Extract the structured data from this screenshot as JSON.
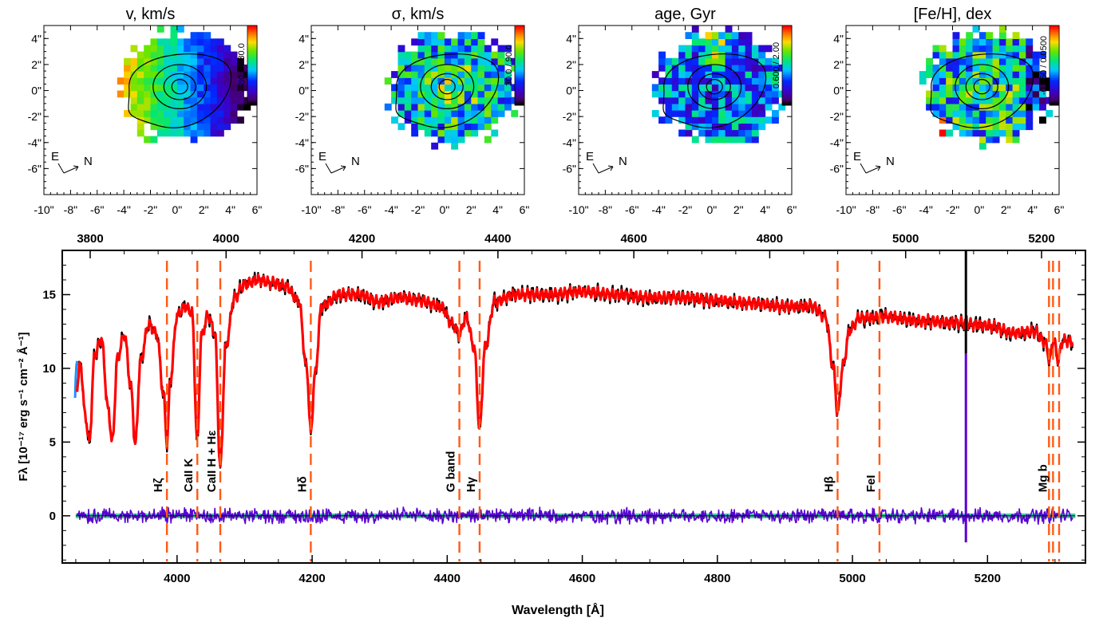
{
  "chart_data": [
    {
      "type": "heatmap",
      "title": "v, km/s",
      "colorbar_label": "-80.0 / 80.0",
      "colorbar_range": [
        -80.0,
        80.0
      ],
      "x_ticks": [
        "-10\"",
        "-8\"",
        "-6\"",
        "-4\"",
        "-2\"",
        "0\"",
        "2\"",
        "4\"",
        "6\""
      ],
      "y_ticks": [
        "4\"",
        "2\"",
        "0\"",
        "-2\"",
        "-4\"",
        "-6\""
      ],
      "compass": {
        "east": "E",
        "north": "N"
      },
      "pattern": "gradient"
    },
    {
      "type": "heatmap",
      "title": "σ, km/s",
      "colorbar_label": "30.0 / 90.0",
      "colorbar_range": [
        30.0,
        90.0
      ],
      "x_ticks": [
        "-10\"",
        "-8\"",
        "-6\"",
        "-4\"",
        "-2\"",
        "0\"",
        "2\"",
        "4\"",
        "6\""
      ],
      "y_ticks": [
        "4\"",
        "2\"",
        "0\"",
        "-2\"",
        "-4\"",
        "-6\""
      ],
      "compass": {
        "east": "E",
        "north": "N"
      },
      "pattern": "sigma"
    },
    {
      "type": "heatmap",
      "title": "age, Gyr",
      "colorbar_label": "0.600 / 2.00",
      "colorbar_range": [
        0.6,
        2.0
      ],
      "x_ticks": [
        "-10\"",
        "-8\"",
        "-6\"",
        "-4\"",
        "-2\"",
        "0\"",
        "2\"",
        "4\"",
        "6\""
      ],
      "y_ticks": [
        "4\"",
        "2\"",
        "0\"",
        "-2\"",
        "-4\"",
        "-6\""
      ],
      "compass": {
        "east": "E",
        "north": "N"
      },
      "pattern": "age"
    },
    {
      "type": "heatmap",
      "title": "[Fe/H], dex",
      "colorbar_label": "-0.850 / 0.0500",
      "colorbar_range": [
        -0.85,
        0.05
      ],
      "x_ticks": [
        "-10\"",
        "-8\"",
        "-6\"",
        "-4\"",
        "-2\"",
        "0\"",
        "2\"",
        "4\"",
        "6\""
      ],
      "y_ticks": [
        "4\"",
        "2\"",
        "0\"",
        "-2\"",
        "-4\"",
        "-6\""
      ],
      "compass": {
        "east": "E",
        "north": "N"
      },
      "pattern": "feh"
    },
    {
      "type": "line",
      "xlabel": "Wavelength [Å]",
      "ylabel": "Fλ [10⁻¹⁷ erg s⁻¹ cm⁻² Å⁻¹]",
      "xlim": [
        3830,
        5345
      ],
      "ylim": [
        -3.2,
        18.0
      ],
      "x_ticks": [
        4000,
        4200,
        4400,
        4600,
        4800,
        5000,
        5200
      ],
      "y_ticks": [
        0,
        5,
        10,
        15
      ],
      "top_axis_ticks": [
        3800,
        4000,
        4200,
        4400,
        4600,
        4800,
        5000,
        5200
      ],
      "colors": {
        "observed": "#000000",
        "model": "#ff0000",
        "residuals": "#5a00d2",
        "zero_line": "#3cd2a0",
        "masked": "#1e90ff",
        "lines": "#ff5a14"
      },
      "observed_knots": [
        [
          3850,
          8.2
        ],
        [
          3857,
          10.3
        ],
        [
          3864,
          6.8
        ],
        [
          3870,
          5.0
        ],
        [
          3878,
          10.9
        ],
        [
          3888,
          12.0
        ],
        [
          3898,
          7.2
        ],
        [
          3904,
          5.0
        ],
        [
          3912,
          10.8
        ],
        [
          3922,
          12.3
        ],
        [
          3932,
          8.6
        ],
        [
          3938,
          4.8
        ],
        [
          3946,
          10.5
        ],
        [
          3958,
          13.0
        ],
        [
          3970,
          12.3
        ],
        [
          3980,
          8.2
        ],
        [
          3985,
          5.0
        ],
        [
          3990,
          9.2
        ],
        [
          4000,
          13.6
        ],
        [
          4012,
          14.2
        ],
        [
          4022,
          13.8
        ],
        [
          4030,
          5.1
        ],
        [
          4036,
          12.2
        ],
        [
          4046,
          13.6
        ],
        [
          4056,
          12.4
        ],
        [
          4064,
          3.3
        ],
        [
          4072,
          11.5
        ],
        [
          4085,
          14.8
        ],
        [
          4100,
          15.7
        ],
        [
          4120,
          16.0
        ],
        [
          4140,
          15.8
        ],
        [
          4160,
          15.6
        ],
        [
          4180,
          14.6
        ],
        [
          4192,
          10.0
        ],
        [
          4198,
          5.6
        ],
        [
          4204,
          9.5
        ],
        [
          4214,
          14.2
        ],
        [
          4240,
          15.0
        ],
        [
          4270,
          15.0
        ],
        [
          4300,
          14.5
        ],
        [
          4330,
          14.8
        ],
        [
          4360,
          14.6
        ],
        [
          4390,
          14.2
        ],
        [
          4408,
          13.0
        ],
        [
          4418,
          12.3
        ],
        [
          4428,
          13.5
        ],
        [
          4440,
          11.4
        ],
        [
          4448,
          5.9
        ],
        [
          4456,
          11.4
        ],
        [
          4470,
          14.5
        ],
        [
          4500,
          15.0
        ],
        [
          4550,
          15.0
        ],
        [
          4600,
          15.2
        ],
        [
          4650,
          15.0
        ],
        [
          4700,
          14.8
        ],
        [
          4750,
          14.8
        ],
        [
          4800,
          14.6
        ],
        [
          4850,
          14.4
        ],
        [
          4900,
          14.2
        ],
        [
          4940,
          14.2
        ],
        [
          4960,
          13.5
        ],
        [
          4972,
          10.0
        ],
        [
          4978,
          6.9
        ],
        [
          4986,
          10.2
        ],
        [
          4996,
          12.6
        ],
        [
          5010,
          13.4
        ],
        [
          5050,
          13.5
        ],
        [
          5100,
          13.2
        ],
        [
          5150,
          13.1
        ],
        [
          5200,
          12.9
        ],
        [
          5240,
          12.4
        ],
        [
          5270,
          12.5
        ],
        [
          5285,
          11.8
        ],
        [
          5292,
          10.6
        ],
        [
          5298,
          12.0
        ],
        [
          5304,
          10.6
        ],
        [
          5312,
          11.9
        ],
        [
          5326,
          11.8
        ]
      ],
      "emission_spike": {
        "x": 5168,
        "y_top": 18.0,
        "y_bottom": 11.0
      },
      "residual_spike": {
        "x": 5168,
        "y_top": 11.0,
        "y_bottom": -1.8
      },
      "features": [
        {
          "label": "Hζ",
          "x": 3985
        },
        {
          "label": "CaII K",
          "x": 4030
        },
        {
          "label": "CaII H + Hε",
          "x": 4064
        },
        {
          "label": "Hδ",
          "x": 4198
        },
        {
          "label": "G band",
          "x": 4418
        },
        {
          "label": "Hγ",
          "x": 4448
        },
        {
          "label": "Hβ",
          "x": 4978
        },
        {
          "label": "FeI",
          "x": 5040
        },
        {
          "label": "Mg b",
          "x": 5295
        }
      ],
      "feature_lines_x": [
        3985,
        4030,
        4064,
        4198,
        4418,
        4448,
        4978,
        5040,
        5291,
        5297,
        5306
      ]
    }
  ]
}
